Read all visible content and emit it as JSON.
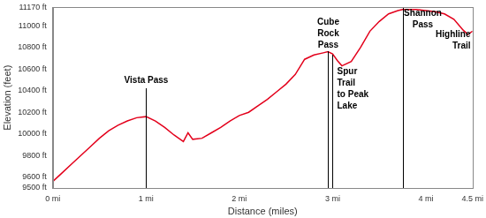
{
  "chart_data": {
    "type": "line",
    "x_label": "Distance (miles)",
    "y_label": "Elevation (feet)",
    "x": [
      0,
      0.1,
      0.2,
      0.3,
      0.4,
      0.5,
      0.6,
      0.7,
      0.8,
      0.9,
      1.0,
      1.1,
      1.2,
      1.3,
      1.4,
      1.45,
      1.5,
      1.6,
      1.7,
      1.8,
      1.9,
      2.0,
      2.1,
      2.2,
      2.3,
      2.4,
      2.5,
      2.6,
      2.7,
      2.8,
      2.9,
      2.95,
      3.0,
      3.05,
      3.1,
      3.2,
      3.3,
      3.4,
      3.5,
      3.6,
      3.7,
      3.75,
      3.9,
      4.0,
      4.1,
      4.2,
      4.3,
      4.4,
      4.45,
      4.5
    ],
    "values": [
      9560,
      9640,
      9720,
      9800,
      9880,
      9960,
      10030,
      10080,
      10120,
      10150,
      10160,
      10120,
      10060,
      9990,
      9930,
      10010,
      9950,
      9960,
      10010,
      10060,
      10120,
      10170,
      10200,
      10260,
      10320,
      10390,
      10460,
      10550,
      10690,
      10730,
      10750,
      10760,
      10740,
      10680,
      10630,
      10670,
      10800,
      10950,
      11040,
      11110,
      11140,
      11150,
      11150,
      11140,
      11130,
      11110,
      11060,
      10960,
      10920,
      10950
    ],
    "color": "#e3001b",
    "marker": "none",
    "line_style": "solid",
    "grid": false,
    "xlim": [
      0,
      4.5
    ],
    "xticks": [
      {
        "value": 0,
        "label": "0 mi"
      },
      {
        "value": 1,
        "label": "1 mi"
      },
      {
        "value": 2,
        "label": "2 mi"
      },
      {
        "value": 3,
        "label": "3 mi"
      },
      {
        "value": 4,
        "label": "4 mi"
      },
      {
        "value": 4.5,
        "label": "4.5 mi"
      }
    ],
    "ylim": [
      9500,
      11170
    ],
    "yticks": [
      {
        "value": 9500,
        "label": "9500 ft"
      },
      {
        "value": 9600,
        "label": "9600 ft"
      },
      {
        "value": 9800,
        "label": "9800 ft"
      },
      {
        "value": 10000,
        "label": "10000 ft"
      },
      {
        "value": 10200,
        "label": "10200 ft"
      },
      {
        "value": 10400,
        "label": "10400 ft"
      },
      {
        "value": 10600,
        "label": "10600 ft"
      },
      {
        "value": 10800,
        "label": "10800 ft"
      },
      {
        "value": 11000,
        "label": "11000 ft"
      },
      {
        "value": 11170,
        "label": "11170 ft"
      }
    ],
    "annotations": [
      {
        "x": 1.0,
        "text": "Vista Pass"
      },
      {
        "x": 2.95,
        "text": "Cube Rock Pass"
      },
      {
        "x": 3.0,
        "text": "Spur Trail to Peak Lake"
      },
      {
        "x": 3.75,
        "text": "Shannon Pass"
      },
      {
        "x": 4.5,
        "text": "Highline Trail"
      }
    ]
  }
}
